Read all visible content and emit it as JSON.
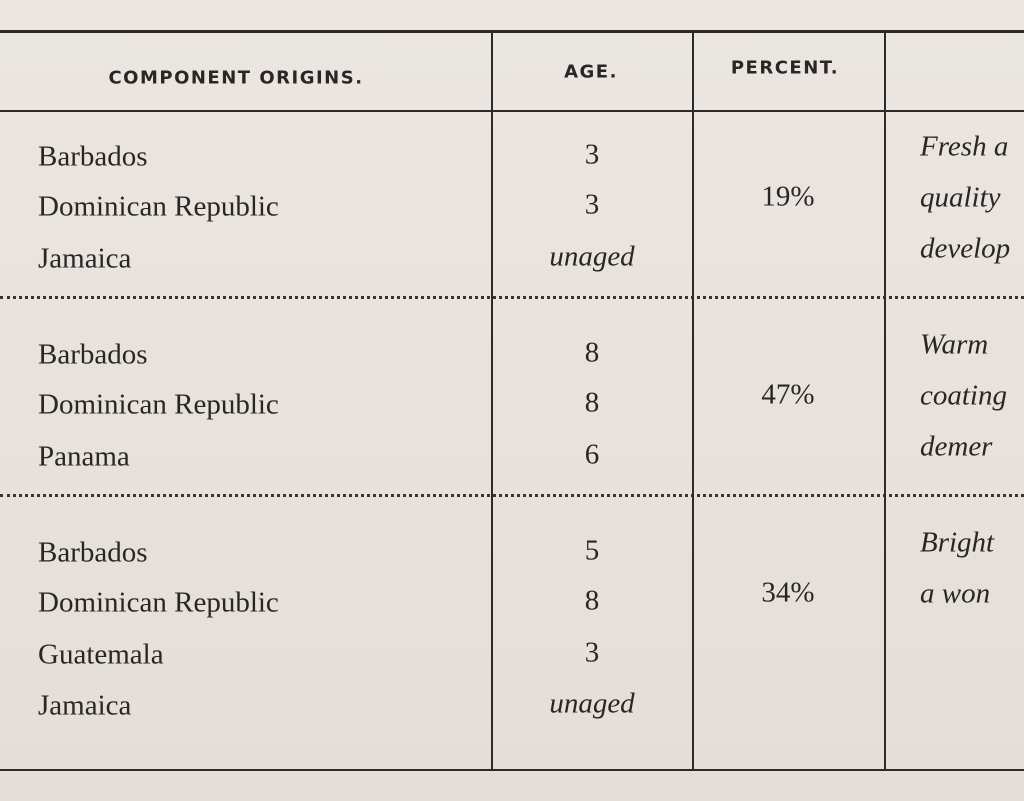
{
  "table": {
    "headers": [
      "COMPONENT ORIGINS.",
      "AGE.",
      "PERCENT."
    ],
    "groups": [
      {
        "rows": [
          [
            "Barbados",
            "3"
          ],
          [
            "Dominican Republic",
            "3"
          ],
          [
            "Jamaica",
            "unaged"
          ]
        ],
        "percent": "19%",
        "notes": [
          "Fresh a",
          "quality",
          "develop"
        ]
      },
      {
        "rows": [
          [
            "Barbados",
            "8"
          ],
          [
            "Dominican Republic",
            "8"
          ],
          [
            "Panama",
            "6"
          ]
        ],
        "percent": "47%",
        "notes": [
          "Warm",
          "coating",
          "demer"
        ]
      },
      {
        "rows": [
          [
            "Barbados",
            "5"
          ],
          [
            "Dominican Republic",
            "8"
          ],
          [
            "Guatemala",
            "3"
          ],
          [
            "Jamaica",
            "unaged"
          ]
        ],
        "percent": "34%",
        "notes": [
          "Bright",
          "a won"
        ]
      }
    ]
  }
}
